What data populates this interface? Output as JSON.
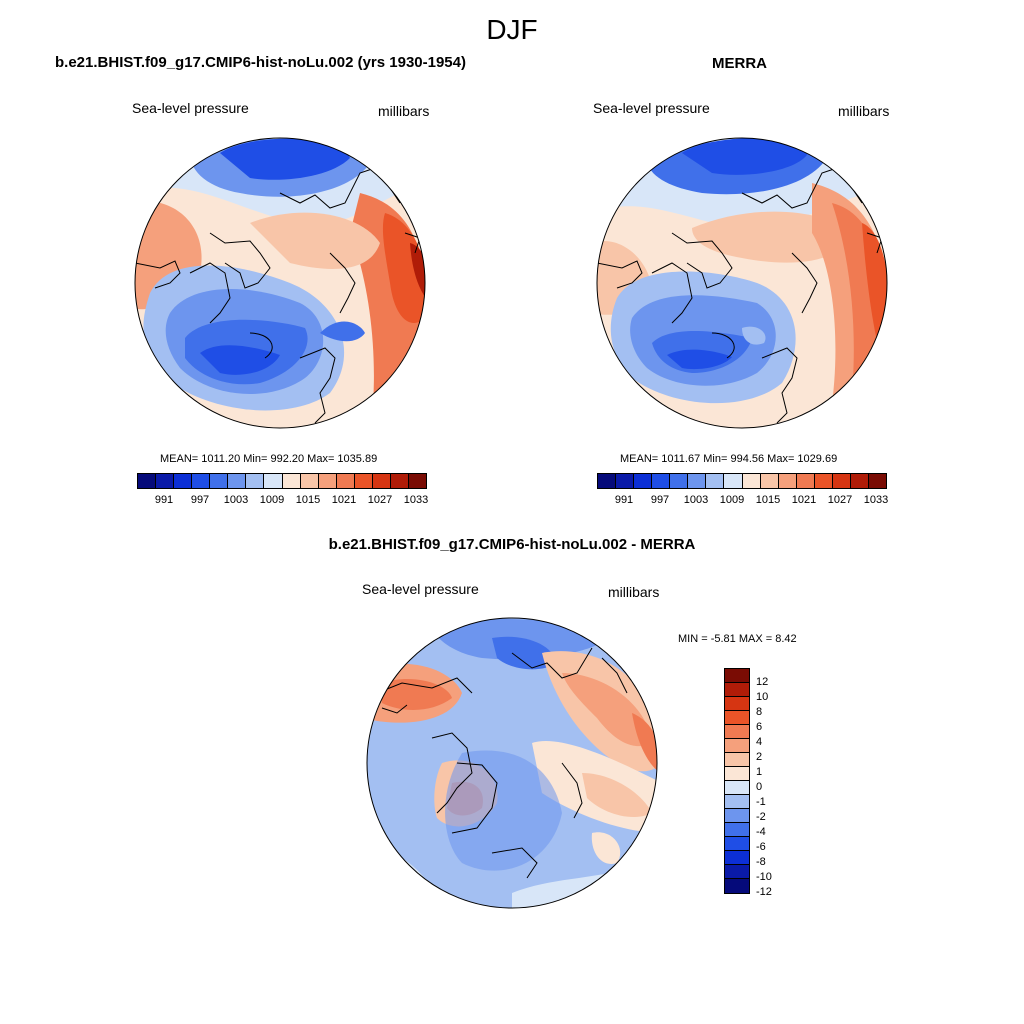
{
  "title": "DJF",
  "panels": {
    "model": {
      "title": "b.e21.BHIST.f09_g17.CMIP6-hist-noLu.002 (yrs 1930-1954)",
      "field": "Sea-level pressure",
      "units": "millibars",
      "stats": "MEAN= 1011.20   Min= 992.20   Max= 1035.89"
    },
    "obs": {
      "title": "MERRA",
      "field": "Sea-level pressure",
      "units": "millibars",
      "stats": "MEAN= 1011.67   Min= 994.56   Max= 1029.69"
    },
    "diff": {
      "title": "b.e21.BHIST.f09_g17.CMIP6-hist-noLu.002 - MERRA",
      "field": "Sea-level pressure",
      "units": "millibars",
      "stats": "MIN =  -5.81 MAX =   8.42"
    }
  },
  "colorbar_abs": {
    "colors": [
      "#050a7a",
      "#0a1aa8",
      "#0c2fd6",
      "#1f4ee6",
      "#4070ea",
      "#6d95ee",
      "#a3bff2",
      "#d8e6f8",
      "#fbe6d6",
      "#f8c5a8",
      "#f5a07c",
      "#f07a52",
      "#ea5428",
      "#d63512",
      "#b01c08",
      "#7a0c04"
    ],
    "ticks": [
      "991",
      "997",
      "1003",
      "1009",
      "1015",
      "1021",
      "1027",
      "1033"
    ]
  },
  "colorbar_diff": {
    "colors": [
      "#7a0c04",
      "#b01c08",
      "#d63512",
      "#ea5428",
      "#f07a52",
      "#f5a07c",
      "#f8c5a8",
      "#fbe6d6",
      "#d8e6f8",
      "#a3bff2",
      "#6d95ee",
      "#4070ea",
      "#1f4ee6",
      "#0c2fd6",
      "#0a1aa8",
      "#050a7a"
    ],
    "ticks": [
      "12",
      "10",
      "8",
      "6",
      "4",
      "2",
      "1",
      "0",
      "-1",
      "-2",
      "-4",
      "-6",
      "-8",
      "-10",
      "-12"
    ]
  }
}
